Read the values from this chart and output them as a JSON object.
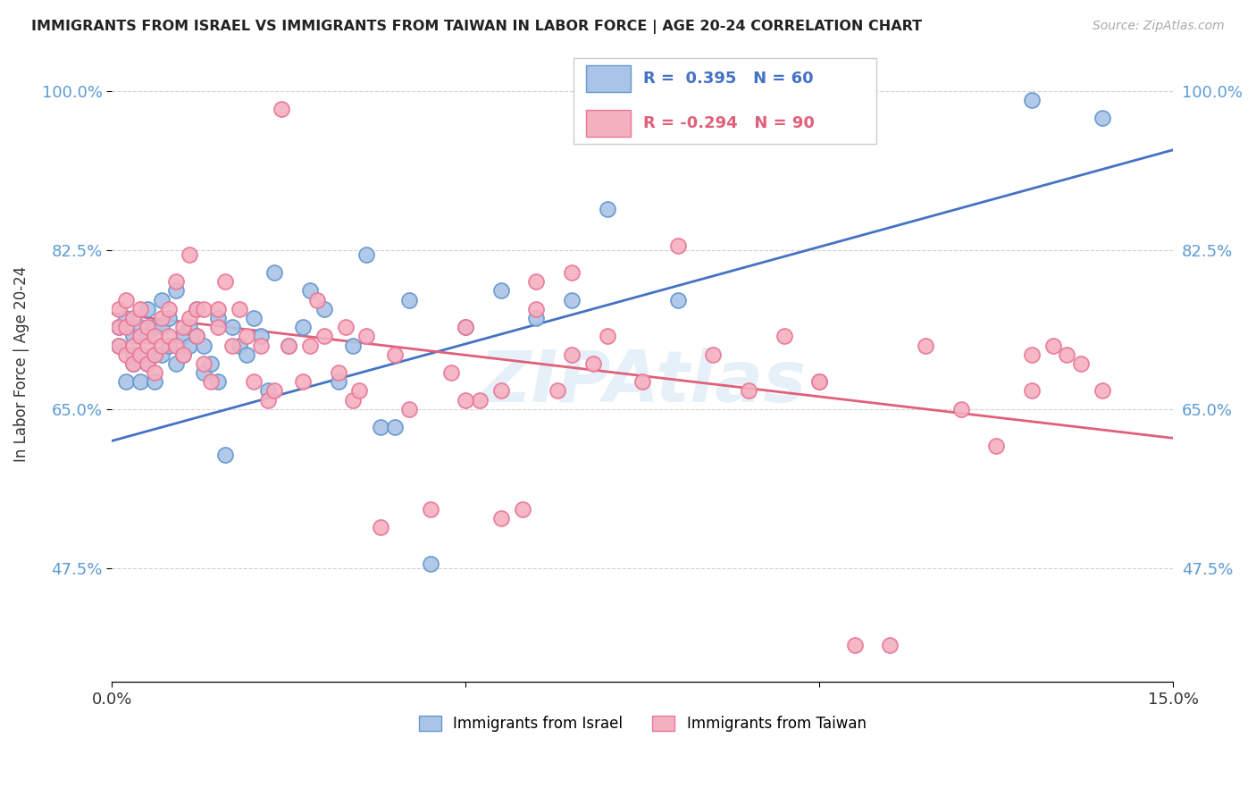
{
  "title": "IMMIGRANTS FROM ISRAEL VS IMMIGRANTS FROM TAIWAN IN LABOR FORCE | AGE 20-24 CORRELATION CHART",
  "source": "Source: ZipAtlas.com",
  "ylabel": "In Labor Force | Age 20-24",
  "xmin": 0.0,
  "xmax": 0.15,
  "ymin": 0.35,
  "ymax": 1.05,
  "yticks": [
    0.475,
    0.65,
    0.825,
    1.0
  ],
  "ytick_labels": [
    "47.5%",
    "65.0%",
    "82.5%",
    "100.0%"
  ],
  "xticks": [
    0.0,
    0.05,
    0.1,
    0.15
  ],
  "xtick_labels": [
    "0.0%",
    "",
    "",
    "15.0%"
  ],
  "grid_color": "#cccccc",
  "background_color": "#ffffff",
  "israel_color": "#aac4e8",
  "taiwan_color": "#f5b0c0",
  "israel_edge_color": "#6699cc",
  "taiwan_edge_color": "#e87898",
  "trendline_israel_color": "#4472c4",
  "trendline_taiwan_color": "#e0607a",
  "R_israel": 0.395,
  "N_israel": 60,
  "R_taiwan": -0.294,
  "N_taiwan": 90,
  "trendline_israel_x0": 0.0,
  "trendline_israel_y0": 0.615,
  "trendline_israel_x1": 0.15,
  "trendline_israel_y1": 0.935,
  "trendline_taiwan_x0": 0.0,
  "trendline_taiwan_y0": 0.755,
  "trendline_taiwan_x1": 0.15,
  "trendline_taiwan_y1": 0.618,
  "israel_x": [
    0.001,
    0.001,
    0.002,
    0.002,
    0.003,
    0.003,
    0.003,
    0.004,
    0.004,
    0.005,
    0.005,
    0.005,
    0.006,
    0.006,
    0.006,
    0.007,
    0.007,
    0.007,
    0.008,
    0.008,
    0.009,
    0.009,
    0.01,
    0.01,
    0.011,
    0.011,
    0.012,
    0.012,
    0.013,
    0.013,
    0.014,
    0.015,
    0.015,
    0.016,
    0.017,
    0.018,
    0.019,
    0.02,
    0.021,
    0.022,
    0.023,
    0.025,
    0.027,
    0.028,
    0.03,
    0.032,
    0.034,
    0.036,
    0.038,
    0.04,
    0.042,
    0.045,
    0.05,
    0.055,
    0.06,
    0.065,
    0.07,
    0.08,
    0.13,
    0.14
  ],
  "israel_y": [
    0.74,
    0.72,
    0.75,
    0.68,
    0.73,
    0.71,
    0.7,
    0.74,
    0.68,
    0.76,
    0.73,
    0.7,
    0.74,
    0.71,
    0.68,
    0.77,
    0.74,
    0.71,
    0.75,
    0.72,
    0.78,
    0.7,
    0.73,
    0.71,
    0.74,
    0.72,
    0.76,
    0.73,
    0.69,
    0.72,
    0.7,
    0.75,
    0.68,
    0.6,
    0.74,
    0.72,
    0.71,
    0.75,
    0.73,
    0.67,
    0.8,
    0.72,
    0.74,
    0.78,
    0.76,
    0.68,
    0.72,
    0.82,
    0.63,
    0.63,
    0.77,
    0.48,
    0.74,
    0.78,
    0.75,
    0.77,
    0.87,
    0.77,
    0.99,
    0.97
  ],
  "taiwan_x": [
    0.001,
    0.001,
    0.001,
    0.002,
    0.002,
    0.002,
    0.003,
    0.003,
    0.003,
    0.004,
    0.004,
    0.004,
    0.005,
    0.005,
    0.005,
    0.006,
    0.006,
    0.006,
    0.007,
    0.007,
    0.008,
    0.008,
    0.009,
    0.009,
    0.01,
    0.01,
    0.011,
    0.011,
    0.012,
    0.012,
    0.013,
    0.013,
    0.014,
    0.015,
    0.015,
    0.016,
    0.017,
    0.018,
    0.019,
    0.02,
    0.021,
    0.022,
    0.023,
    0.024,
    0.025,
    0.027,
    0.028,
    0.029,
    0.03,
    0.032,
    0.033,
    0.034,
    0.035,
    0.036,
    0.038,
    0.04,
    0.042,
    0.045,
    0.048,
    0.05,
    0.052,
    0.055,
    0.058,
    0.06,
    0.063,
    0.065,
    0.068,
    0.07,
    0.075,
    0.08,
    0.085,
    0.09,
    0.095,
    0.1,
    0.105,
    0.11,
    0.115,
    0.12,
    0.125,
    0.13,
    0.133,
    0.135,
    0.137,
    0.1,
    0.05,
    0.055,
    0.06,
    0.065,
    0.13,
    0.14
  ],
  "taiwan_y": [
    0.76,
    0.74,
    0.72,
    0.77,
    0.74,
    0.71,
    0.75,
    0.72,
    0.7,
    0.76,
    0.73,
    0.71,
    0.74,
    0.72,
    0.7,
    0.73,
    0.71,
    0.69,
    0.75,
    0.72,
    0.76,
    0.73,
    0.79,
    0.72,
    0.74,
    0.71,
    0.75,
    0.82,
    0.76,
    0.73,
    0.7,
    0.76,
    0.68,
    0.76,
    0.74,
    0.79,
    0.72,
    0.76,
    0.73,
    0.68,
    0.72,
    0.66,
    0.67,
    0.98,
    0.72,
    0.68,
    0.72,
    0.77,
    0.73,
    0.69,
    0.74,
    0.66,
    0.67,
    0.73,
    0.52,
    0.71,
    0.65,
    0.54,
    0.69,
    0.74,
    0.66,
    0.53,
    0.54,
    0.76,
    0.67,
    0.8,
    0.7,
    0.73,
    0.68,
    0.83,
    0.71,
    0.67,
    0.73,
    0.68,
    0.39,
    0.39,
    0.72,
    0.65,
    0.61,
    0.71,
    0.72,
    0.71,
    0.7,
    0.68,
    0.66,
    0.67,
    0.79,
    0.71,
    0.67,
    0.67
  ],
  "watermark_text": "ZIPAtlas",
  "legend_israel_label": "Immigrants from Israel",
  "legend_taiwan_label": "Immigrants from Taiwan"
}
